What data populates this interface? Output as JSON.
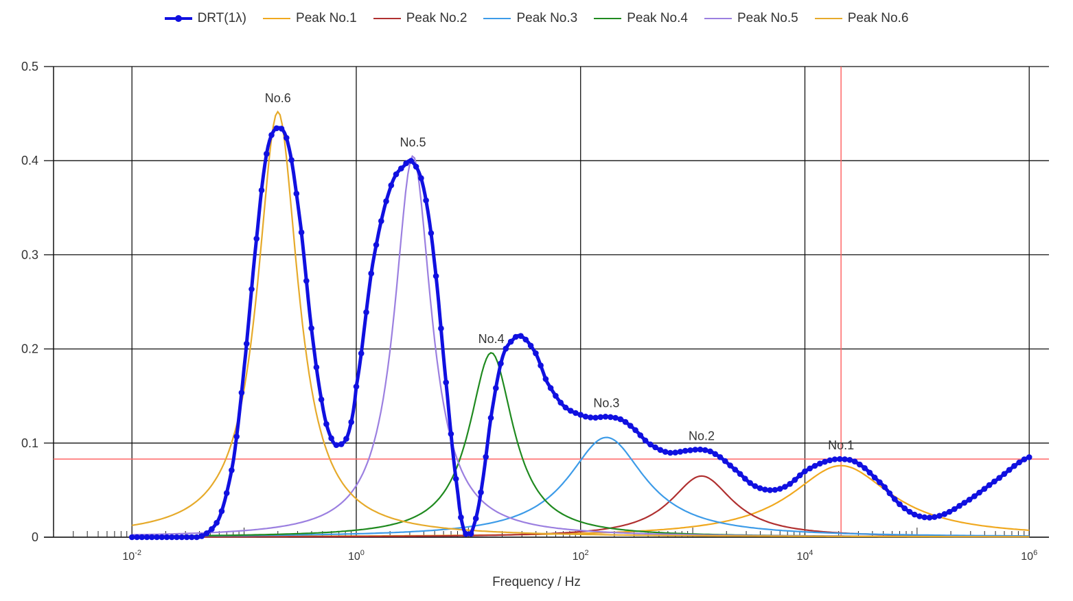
{
  "chart_data": {
    "type": "line",
    "title": "",
    "xlabel": "Frequency / Hz",
    "ylabel": "",
    "xscale": "log",
    "xlim": [
      0.002,
      1500000
    ],
    "ylim": [
      0,
      0.5
    ],
    "grid": true,
    "legend_position": "top-center",
    "y_ticks": [
      "0",
      "0.1",
      "0.2",
      "0.3",
      "0.4",
      "0.5"
    ],
    "x_ticks": [
      {
        "value": 0.01,
        "base": "10",
        "exp": "-2"
      },
      {
        "value": 1,
        "base": "10",
        "exp": "0"
      },
      {
        "value": 100,
        "base": "10",
        "exp": "2"
      },
      {
        "value": 10000,
        "base": "10",
        "exp": "4"
      },
      {
        "value": 1000000,
        "base": "10",
        "exp": "6"
      }
    ],
    "peaks": [
      {
        "name": "Peak No.1",
        "label": "No.1",
        "center_hz": 21000,
        "height": 0.076,
        "log_width": 0.55,
        "color": "#f0a81e"
      },
      {
        "name": "Peak No.2",
        "label": "No.2",
        "center_hz": 1200,
        "height": 0.065,
        "log_width": 0.34,
        "color": "#b03030"
      },
      {
        "name": "Peak No.3",
        "label": "No.3",
        "center_hz": 170,
        "height": 0.106,
        "log_width": 0.42,
        "color": "#3c9be8"
      },
      {
        "name": "Peak No.4",
        "label": "No.4",
        "center_hz": 16,
        "height": 0.196,
        "log_width": 0.24,
        "color": "#1f8a1f"
      },
      {
        "name": "Peak No.5",
        "label": "No.5",
        "center_hz": 3.2,
        "height": 0.405,
        "log_width": 0.2,
        "color": "#9b7fe0"
      },
      {
        "name": "Peak No.6",
        "label": "No.6",
        "center_hz": 0.2,
        "height": 0.452,
        "log_width": 0.22,
        "color": "#e6aa2a"
      }
    ],
    "drt_series": {
      "name": "DRT(1λ)",
      "color": "#1010e0",
      "points": [
        [
          0.01,
          0.0
        ],
        [
          0.02,
          0.0
        ],
        [
          0.04,
          0.0
        ],
        [
          0.06,
          0.02
        ],
        [
          0.08,
          0.08
        ],
        [
          0.1,
          0.18
        ],
        [
          0.13,
          0.32
        ],
        [
          0.16,
          0.41
        ],
        [
          0.2,
          0.435
        ],
        [
          0.25,
          0.415
        ],
        [
          0.32,
          0.33
        ],
        [
          0.4,
          0.22
        ],
        [
          0.5,
          0.14
        ],
        [
          0.6,
          0.105
        ],
        [
          0.7,
          0.098
        ],
        [
          0.85,
          0.11
        ],
        [
          1.0,
          0.16
        ],
        [
          1.4,
          0.29
        ],
        [
          2.0,
          0.37
        ],
        [
          2.7,
          0.395
        ],
        [
          3.2,
          0.398
        ],
        [
          4.0,
          0.37
        ],
        [
          5.0,
          0.29
        ],
        [
          6.5,
          0.15
        ],
        [
          8.0,
          0.05
        ],
        [
          9.0,
          0.01
        ],
        [
          10.0,
          0.003
        ],
        [
          11.0,
          0.01
        ],
        [
          13.0,
          0.05
        ],
        [
          16.0,
          0.13
        ],
        [
          20.0,
          0.19
        ],
        [
          25.0,
          0.21
        ],
        [
          30.0,
          0.213
        ],
        [
          40.0,
          0.195
        ],
        [
          50.0,
          0.165
        ],
        [
          70.0,
          0.14
        ],
        [
          100.0,
          0.13
        ],
        [
          130.0,
          0.127
        ],
        [
          170.0,
          0.128
        ],
        [
          230.0,
          0.125
        ],
        [
          300.0,
          0.115
        ],
        [
          400.0,
          0.1
        ],
        [
          600.0,
          0.09
        ],
        [
          900.0,
          0.092
        ],
        [
          1200.0,
          0.093
        ],
        [
          1600.0,
          0.088
        ],
        [
          2500.0,
          0.07
        ],
        [
          3500.0,
          0.055
        ],
        [
          5000.0,
          0.05
        ],
        [
          7000.0,
          0.055
        ],
        [
          10000.0,
          0.07
        ],
        [
          15000.0,
          0.08
        ],
        [
          21000.0,
          0.083
        ],
        [
          30000.0,
          0.078
        ],
        [
          50000.0,
          0.055
        ],
        [
          70000.0,
          0.035
        ],
        [
          100000.0,
          0.023
        ],
        [
          150000.0,
          0.022
        ],
        [
          250000.0,
          0.035
        ],
        [
          500000.0,
          0.06
        ],
        [
          1000000.0,
          0.085
        ]
      ]
    },
    "cursor": {
      "x_hz": 21000,
      "y": 0.083,
      "color": "#ff6666"
    }
  }
}
